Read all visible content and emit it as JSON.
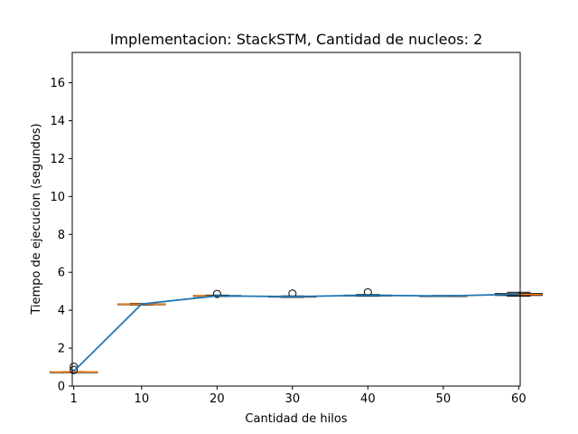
{
  "chart_data": {
    "type": "box",
    "title": "Implementacion: StackSTM, Cantidad de nucleos: 2",
    "xlabel": "Cantidad de hilos",
    "ylabel": "Tiempo de ejecucion (segundos)",
    "xlim": [
      0.8,
      60.2
    ],
    "ylim": [
      0,
      17.6
    ],
    "xticks": [
      1,
      10,
      20,
      30,
      40,
      50,
      60
    ],
    "yticks": [
      0,
      2,
      4,
      6,
      8,
      10,
      12,
      14,
      16
    ],
    "grid": false,
    "legend": "none",
    "colors": {
      "line": "#1f77b4",
      "median": "#ff7f0e",
      "box": "#000000",
      "outlier": "#000000"
    },
    "boxes": [
      {
        "x": 1,
        "whislo": 0.74,
        "q1": 0.75,
        "med": 0.75,
        "q3": 0.76,
        "whishi": 0.77,
        "fliers": [
          0.85,
          1.02
        ]
      },
      {
        "x": 10,
        "whislo": 4.28,
        "q1": 4.3,
        "med": 4.32,
        "q3": 4.34,
        "whishi": 4.36,
        "fliers": []
      },
      {
        "x": 20,
        "whislo": 4.72,
        "q1": 4.74,
        "med": 4.76,
        "q3": 4.78,
        "whishi": 4.8,
        "fliers": [
          4.86
        ]
      },
      {
        "x": 30,
        "whislo": 4.68,
        "q1": 4.7,
        "med": 4.72,
        "q3": 4.74,
        "whishi": 4.76,
        "fliers": [
          4.88
        ]
      },
      {
        "x": 40,
        "whislo": 4.74,
        "q1": 4.76,
        "med": 4.78,
        "q3": 4.8,
        "whishi": 4.83,
        "fliers": [
          4.95
        ]
      },
      {
        "x": 50,
        "whislo": 4.72,
        "q1": 4.73,
        "med": 4.75,
        "q3": 4.77,
        "whishi": 4.78,
        "fliers": []
      },
      {
        "x": 60,
        "whislo": 4.74,
        "q1": 4.78,
        "med": 4.83,
        "q3": 4.88,
        "whishi": 4.95,
        "fliers": []
      }
    ],
    "mean_line": {
      "x": [
        1,
        10,
        20,
        30,
        40,
        50,
        60
      ],
      "y": [
        0.78,
        4.33,
        4.76,
        4.72,
        4.79,
        4.75,
        4.85
      ]
    }
  }
}
